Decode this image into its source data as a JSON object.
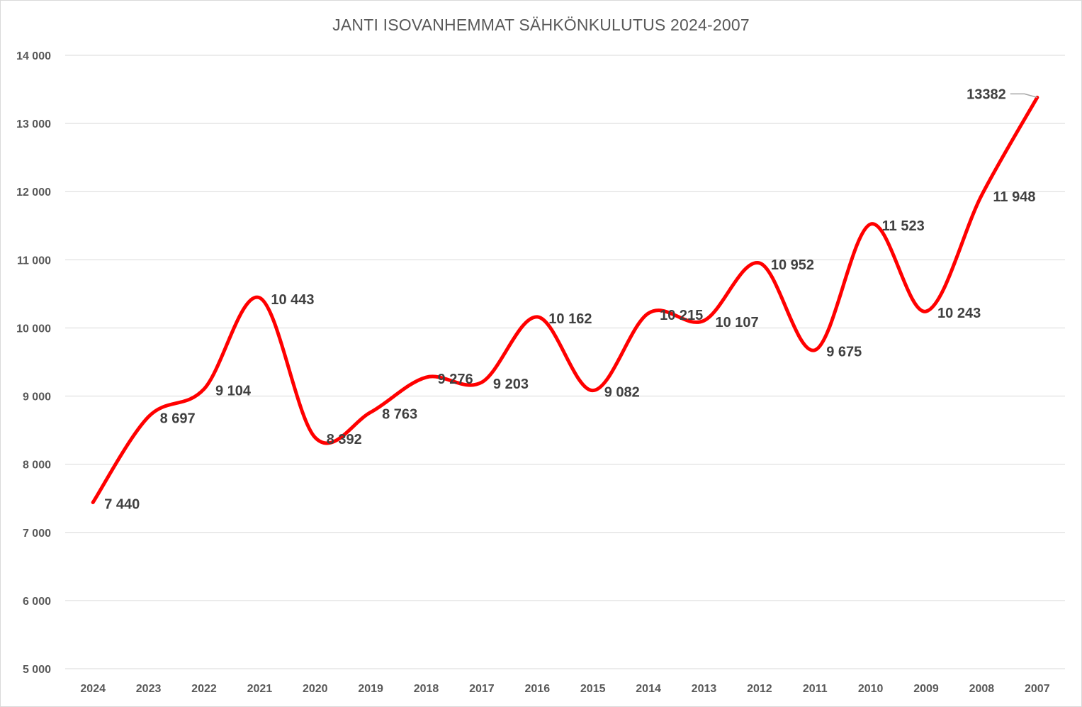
{
  "chart_data": {
    "type": "line",
    "title": "JANTI ISOVANHEMMAT SÄHKÖNKULUTUS 2024-2007",
    "xlabel": "",
    "ylabel": "",
    "ylim": [
      5000,
      14000
    ],
    "y_ticks": [
      5000,
      6000,
      7000,
      8000,
      9000,
      10000,
      11000,
      12000,
      13000,
      14000
    ],
    "y_tick_labels": [
      "5 000",
      "6 000",
      "7 000",
      "8 000",
      "9 000",
      "10 000",
      "11 000",
      "12 000",
      "13 000",
      "14 000"
    ],
    "grid": true,
    "smooth": true,
    "line_color": "#ff0000",
    "legend": "none",
    "categories": [
      "2024",
      "2023",
      "2022",
      "2021",
      "2020",
      "2019",
      "2018",
      "2017",
      "2016",
      "2015",
      "2014",
      "2013",
      "2012",
      "2011",
      "2010",
      "2009",
      "2008",
      "2007"
    ],
    "values": [
      7440,
      8697,
      9104,
      10443,
      8392,
      8763,
      9276,
      9203,
      10162,
      9082,
      10215,
      10107,
      10952,
      9675,
      11523,
      10243,
      11948,
      13382
    ],
    "data_labels": [
      "7 440",
      "8 697",
      "9 104",
      "10 443",
      "8 392",
      "8 763",
      "9 276",
      "9 203",
      "10 162",
      "9 082",
      "10 215",
      "10 107",
      "10 952",
      "9 675",
      "11 523",
      "10 243",
      "11 948",
      "13382"
    ]
  }
}
